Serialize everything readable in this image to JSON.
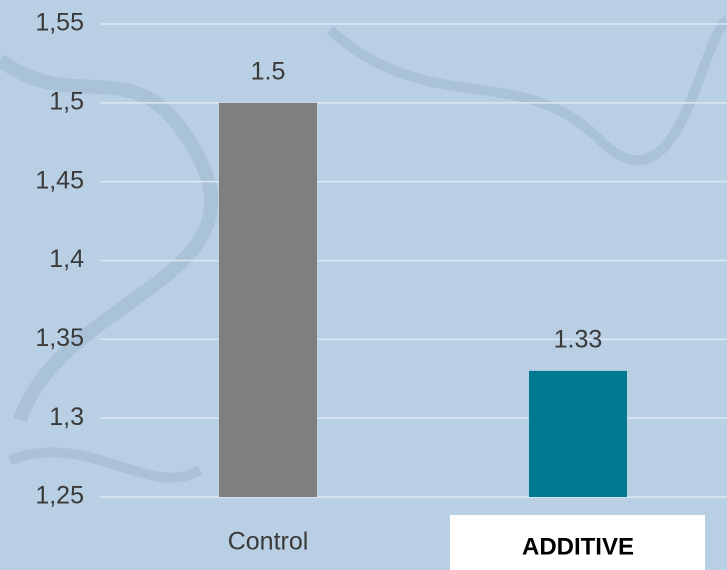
{
  "chart_data": {
    "type": "bar",
    "categories": [
      "Control",
      "ADDITIVE"
    ],
    "values": [
      1.5,
      1.33
    ],
    "colors": [
      "#7f7f7f",
      "#007a91"
    ],
    "ylim": [
      1.25,
      1.55
    ],
    "yticks": [
      {
        "value": 1.25,
        "label": "1,25"
      },
      {
        "value": 1.3,
        "label": "1,3"
      },
      {
        "value": 1.35,
        "label": "1,35"
      },
      {
        "value": 1.4,
        "label": "1,4"
      },
      {
        "value": 1.45,
        "label": "1,45"
      },
      {
        "value": 1.5,
        "label": "1,5"
      },
      {
        "value": 1.55,
        "label": "1,55"
      }
    ],
    "grid": true
  }
}
